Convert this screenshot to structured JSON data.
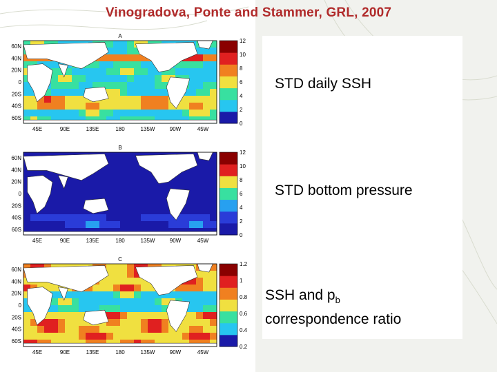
{
  "slide": {
    "title": "Vinogradova, Ponte and Stammer, GRL, 2007",
    "labels": {
      "ssh": "STD daily SSH",
      "bp": "STD bottom pressure",
      "ratio_line1_main": "SSH and p",
      "ratio_line1_sub": "b",
      "ratio_line2": "correspondence ratio"
    }
  },
  "colors": {
    "title": "#b02a2a",
    "ocean_low": "#1a1aa8",
    "ocean_mid": "#27c6f0",
    "ocean_high": "#e02020",
    "land": "#ffffff"
  },
  "chart_data": [
    {
      "type": "heatmap",
      "panel_letter": "A",
      "lat_ticks": [
        "60N",
        "40N",
        "20N",
        "0",
        "20S",
        "40S",
        "60S"
      ],
      "lon_ticks": [
        "45E",
        "90E",
        "135E",
        "180",
        "135W",
        "90W",
        "45W"
      ],
      "colorbar_ticks": [
        "12",
        "10",
        "8",
        "6",
        "4",
        "2",
        "0"
      ],
      "colorbar_range": [
        0,
        12
      ]
    },
    {
      "type": "heatmap",
      "panel_letter": "B",
      "lat_ticks": [
        "60N",
        "40N",
        "20N",
        "0",
        "20S",
        "40S",
        "60S"
      ],
      "lon_ticks": [
        "45E",
        "90E",
        "135E",
        "180",
        "135W",
        "90W",
        "45W"
      ],
      "colorbar_ticks": [
        "12",
        "10",
        "8",
        "6",
        "4",
        "2",
        "0"
      ],
      "colorbar_range": [
        0,
        12
      ]
    },
    {
      "type": "heatmap",
      "panel_letter": "C",
      "lat_ticks": [
        "60N",
        "40N",
        "20N",
        "0",
        "20S",
        "40S",
        "60S"
      ],
      "lon_ticks": [
        "45E",
        "90E",
        "135E",
        "180",
        "135W",
        "90W",
        "45W"
      ],
      "colorbar_ticks": [
        "1.2",
        "1",
        "0.8",
        "0.6",
        "0.4",
        "0.2"
      ],
      "colorbar_range": [
        0.2,
        1.2
      ]
    }
  ]
}
